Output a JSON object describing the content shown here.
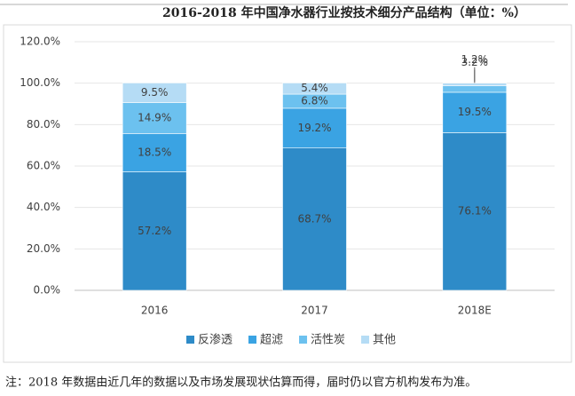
{
  "chart_data": {
    "type": "bar",
    "stacked": true,
    "title": "2016-2018 年中国净水器行业按技术细分产品结构（单位：%）",
    "note": "注：2018 年数据由近几年的数据以及市场发展现状估算而得，届时仍以官方机构发布为准。",
    "categories": [
      "2016",
      "2017",
      "2018E"
    ],
    "series": [
      {
        "name": "反渗透",
        "color": "#2e8bc8",
        "values": [
          57.2,
          68.7,
          76.1
        ],
        "value_labels": [
          "57.2%",
          "68.7%",
          "76.1%"
        ]
      },
      {
        "name": "超滤",
        "color": "#3aa3e3",
        "values": [
          18.5,
          19.2,
          19.5
        ],
        "value_labels": [
          "18.5%",
          "19.2%",
          "19.5%"
        ]
      },
      {
        "name": "活性炭",
        "color": "#6cc1ef",
        "values": [
          14.9,
          6.8,
          3.2
        ],
        "value_labels": [
          "14.9%",
          "6.8%",
          "3.2%"
        ]
      },
      {
        "name": "其他",
        "color": "#b5dcf5",
        "values": [
          9.5,
          5.4,
          1.2
        ],
        "value_labels": [
          "9.5%",
          "5.4%",
          "1.2%"
        ]
      }
    ],
    "ylim": [
      0,
      120
    ],
    "yticks": [
      {
        "value": 0,
        "label": "0.0%"
      },
      {
        "value": 20,
        "label": "20.0%"
      },
      {
        "value": 40,
        "label": "40.0%"
      },
      {
        "value": 60,
        "label": "60.0%"
      },
      {
        "value": 80,
        "label": "80.0%"
      },
      {
        "value": 100,
        "label": "100.0%"
      },
      {
        "value": 120,
        "label": "120.0%"
      }
    ],
    "grid": true
  }
}
